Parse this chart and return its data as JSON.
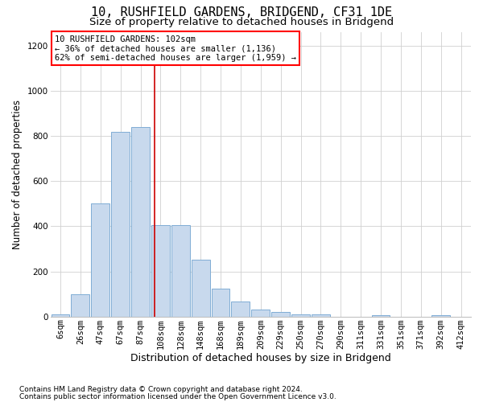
{
  "title": "10, RUSHFIELD GARDENS, BRIDGEND, CF31 1DE",
  "subtitle": "Size of property relative to detached houses in Bridgend",
  "xlabel": "Distribution of detached houses by size in Bridgend",
  "ylabel": "Number of detached properties",
  "footnote1": "Contains HM Land Registry data © Crown copyright and database right 2024.",
  "footnote2": "Contains public sector information licensed under the Open Government Licence v3.0.",
  "annotation_line1": "10 RUSHFIELD GARDENS: 102sqm",
  "annotation_line2": "← 36% of detached houses are smaller (1,136)",
  "annotation_line3": "62% of semi-detached houses are larger (1,959) →",
  "bar_color": "#c8d9ed",
  "bar_edge_color": "#7fadd4",
  "vline_color": "#cc0000",
  "vline_position": 4.75,
  "categories": [
    "6sqm",
    "26sqm",
    "47sqm",
    "67sqm",
    "87sqm",
    "108sqm",
    "128sqm",
    "148sqm",
    "168sqm",
    "189sqm",
    "209sqm",
    "229sqm",
    "250sqm",
    "270sqm",
    "290sqm",
    "311sqm",
    "331sqm",
    "351sqm",
    "371sqm",
    "392sqm",
    "412sqm"
  ],
  "values": [
    10,
    100,
    500,
    820,
    840,
    405,
    405,
    250,
    125,
    65,
    32,
    20,
    10,
    10,
    0,
    0,
    5,
    0,
    0,
    5,
    0
  ],
  "ylim": [
    0,
    1260
  ],
  "yticks": [
    0,
    200,
    400,
    600,
    800,
    1000,
    1200
  ],
  "grid_color": "#d0d0d0",
  "background_color": "#ffffff",
  "title_fontsize": 11,
  "subtitle_fontsize": 9.5,
  "ylabel_fontsize": 8.5,
  "xlabel_fontsize": 9,
  "tick_fontsize": 7.5,
  "footnote_fontsize": 6.5,
  "annotation_fontsize": 7.5
}
